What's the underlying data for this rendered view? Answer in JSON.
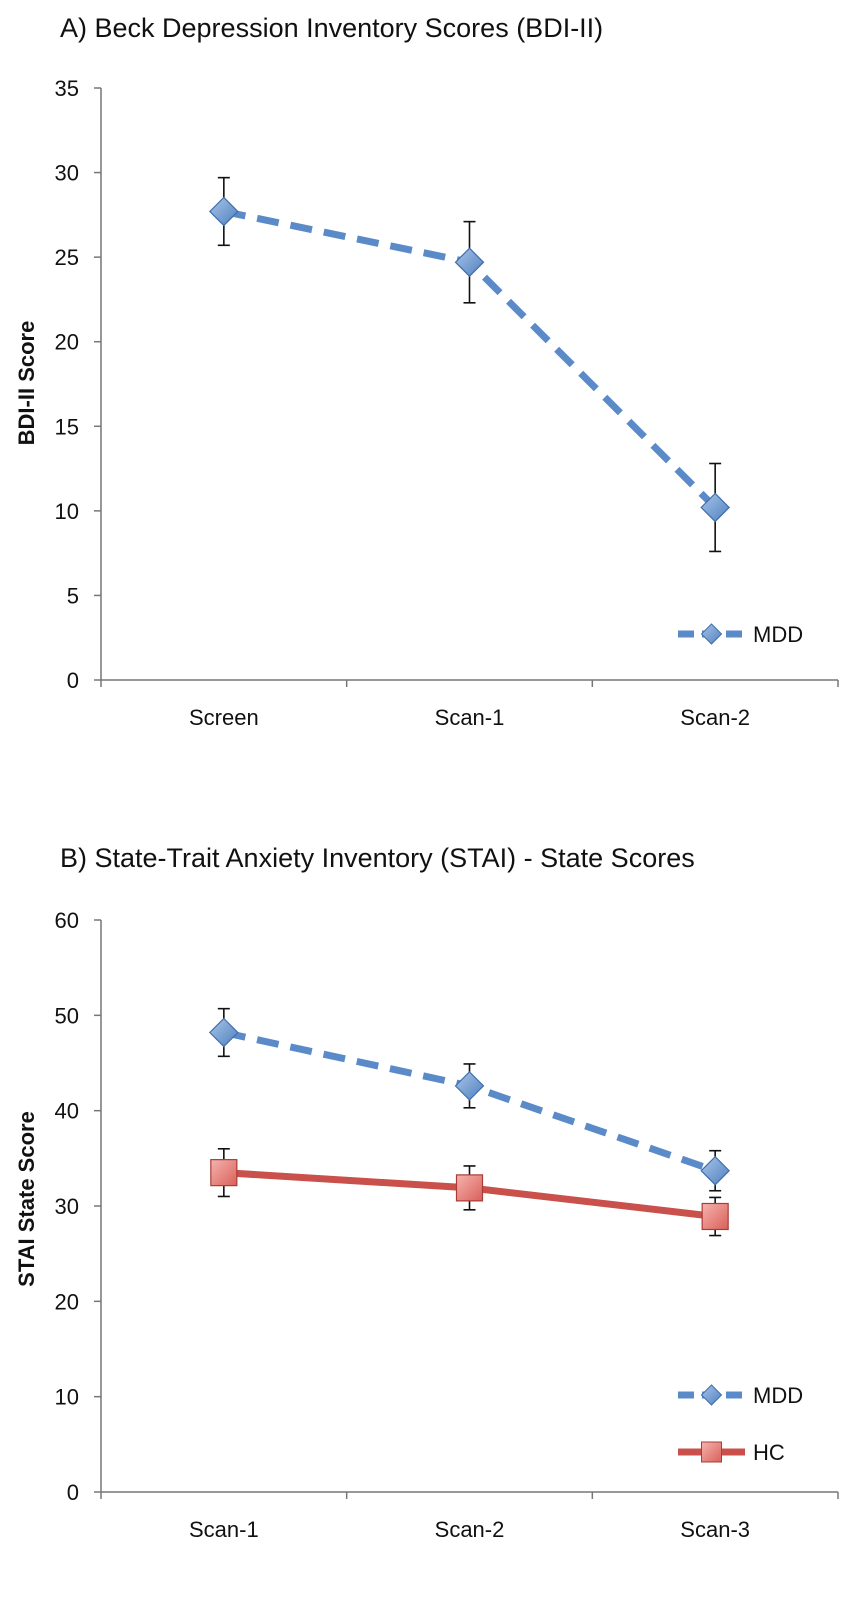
{
  "chart_data": [
    {
      "type": "line",
      "title": "A) Beck Depression Inventory Scores (BDI-II)",
      "xlabel": "",
      "ylabel": "BDI-II Score",
      "categories": [
        "Screen",
        "Scan-1",
        "Scan-2"
      ],
      "ylim": [
        0,
        35
      ],
      "yticks": [
        0,
        5,
        10,
        15,
        20,
        25,
        30,
        35
      ],
      "grid": false,
      "legend": "bottom-right",
      "series": [
        {
          "name": "MDD",
          "values": [
            27.7,
            24.7,
            10.2
          ],
          "error": [
            2.0,
            2.4,
            2.6
          ],
          "color": "#5b8ac8",
          "line_style": "dashed",
          "marker": "diamond"
        }
      ]
    },
    {
      "type": "line",
      "title": "B) State-Trait Anxiety Inventory (STAI) - State Scores",
      "xlabel": "",
      "ylabel": "STAI State Score",
      "categories": [
        "Scan-1",
        "Scan-2",
        "Scan-3"
      ],
      "ylim": [
        0,
        60
      ],
      "yticks": [
        0,
        10,
        20,
        30,
        40,
        50,
        60
      ],
      "grid": false,
      "legend": "bottom-right",
      "series": [
        {
          "name": "MDD",
          "values": [
            48.2,
            42.6,
            33.7
          ],
          "error": [
            2.5,
            2.3,
            2.1
          ],
          "color": "#5b8ac8",
          "line_style": "dashed",
          "marker": "diamond"
        },
        {
          "name": "HC",
          "values": [
            33.5,
            31.9,
            28.9
          ],
          "error": [
            2.5,
            2.3,
            2.0
          ],
          "color": "#c9504b",
          "line_style": "solid",
          "marker": "square"
        }
      ]
    }
  ]
}
